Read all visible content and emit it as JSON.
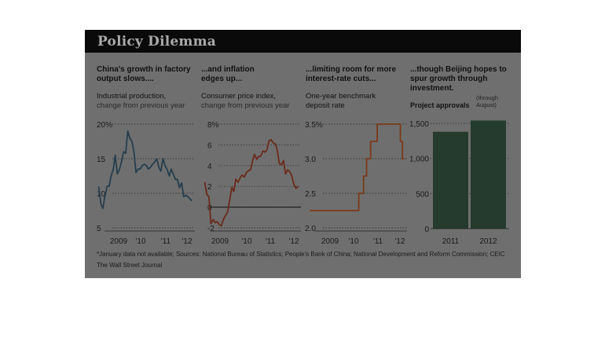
{
  "title": "Policy Dilemma",
  "colors": {
    "panel_bg": "#6f6f6f",
    "title_bar": "#0a0a0a",
    "ip_line": "#263e4e",
    "ip_highlight": "#7cc0de",
    "cpi_line": "#6b2a1c",
    "cpi_highlight": "#d84a35",
    "rate_line": "#7a3a18",
    "rate_highlight": "#e7a21a",
    "bar_fill": "#243b2e",
    "bar_highlight": "#5d9a6a"
  },
  "panels": [
    {
      "headline": "China's growth in factory output slows....",
      "subtitle": "Industrial production,",
      "subtitle2": "change from previous year"
    },
    {
      "headline": "...and inflation edges up...",
      "subtitle": "Consumer price index,",
      "subtitle2": "change from previous year"
    },
    {
      "headline": "...limiting room for more interest-rate cuts...",
      "subtitle": "One-year benchmark",
      "subtitle2": "deposit rate"
    },
    {
      "headline": "...though Beijing hopes to spur growth through investment.",
      "subtitle": "Project approvals",
      "note": "(through August)"
    }
  ],
  "chart_data": [
    {
      "type": "line",
      "title": "Industrial production, change from previous year",
      "y_ticks": [
        "20%",
        "15",
        "10",
        "5"
      ],
      "x_ticks": [
        "2009",
        "'10",
        "'11",
        "'12"
      ],
      "ylim": [
        5,
        20
      ],
      "xlim": [
        2008.75,
        2012.7
      ],
      "series": [
        {
          "x": [
            2008.83,
            2008.92,
            2009.0,
            2009.08,
            2009.17,
            2009.25,
            2009.33,
            2009.42,
            2009.5,
            2009.58,
            2009.67,
            2009.75,
            2009.83,
            2009.92,
            2010.0,
            2010.08,
            2010.17,
            2010.25,
            2010.33,
            2010.42,
            2010.5,
            2010.58,
            2010.67,
            2010.75,
            2010.83,
            2010.92,
            2011.0,
            2011.08,
            2011.17,
            2011.25,
            2011.33,
            2011.42,
            2011.5,
            2011.58,
            2011.67,
            2011.75,
            2011.83,
            2011.92,
            2012.0,
            2012.08,
            2012.17,
            2012.25,
            2012.33,
            2012.42,
            2012.5,
            2012.58
          ],
          "y": [
            11.0,
            8.5,
            7.8,
            9.5,
            11.0,
            11.0,
            12.5,
            13.5,
            15.5,
            12.8,
            13.5,
            14.5,
            16.0,
            15.8,
            19.0,
            18.0,
            17.5,
            16.0,
            13.0,
            13.5,
            13.5,
            14.0,
            14.2,
            14.0,
            13.5,
            13.8,
            14.2,
            14.5,
            15.0,
            13.8,
            13.2,
            15.0,
            14.0,
            13.5,
            12.5,
            13.5,
            12.8,
            12.0,
            12.0,
            10.8,
            11.5,
            9.5,
            9.7,
            9.5,
            9.2,
            8.9
          ]
        }
      ]
    },
    {
      "type": "line",
      "title": "Consumer price index, change from previous year",
      "y_ticks": [
        "8%",
        "6",
        "4",
        "2",
        "0",
        "-2"
      ],
      "x_ticks": [
        "2009",
        "'10",
        "'11",
        "'12"
      ],
      "ylim": [
        -2,
        8
      ],
      "xlim": [
        2008.75,
        2012.7
      ],
      "series": [
        {
          "x": [
            2008.83,
            2008.92,
            2009.0,
            2009.08,
            2009.17,
            2009.25,
            2009.33,
            2009.42,
            2009.5,
            2009.58,
            2009.67,
            2009.75,
            2009.83,
            2009.92,
            2010.0,
            2010.08,
            2010.17,
            2010.25,
            2010.33,
            2010.42,
            2010.5,
            2010.58,
            2010.67,
            2010.75,
            2010.83,
            2010.92,
            2011.0,
            2011.08,
            2011.17,
            2011.25,
            2011.33,
            2011.42,
            2011.5,
            2011.58,
            2011.67,
            2011.75,
            2011.83,
            2011.92,
            2012.0,
            2012.08,
            2012.17,
            2012.25,
            2012.33,
            2012.42,
            2012.5,
            2012.58
          ],
          "y": [
            2.4,
            1.2,
            1.0,
            -1.6,
            -1.2,
            -1.5,
            -1.4,
            -1.7,
            -1.8,
            -1.2,
            -0.8,
            -0.5,
            0.6,
            1.9,
            1.5,
            2.7,
            2.4,
            2.8,
            3.1,
            2.9,
            3.3,
            3.5,
            3.6,
            4.4,
            5.1,
            4.6,
            4.9,
            4.9,
            5.4,
            5.3,
            5.5,
            6.4,
            6.5,
            6.2,
            6.1,
            5.5,
            4.2,
            4.1,
            4.5,
            3.2,
            3.6,
            3.4,
            3.0,
            2.2,
            1.8,
            2.0
          ]
        }
      ]
    },
    {
      "type": "line",
      "title": "One-year benchmark deposit rate",
      "y_ticks": [
        "3.5%",
        "3.0",
        "2.5",
        "2.0"
      ],
      "x_ticks": [
        "2009",
        "'10",
        "'11",
        "'12"
      ],
      "ylim": [
        2.0,
        3.5
      ],
      "xlim": [
        2008.75,
        2012.7
      ],
      "series": [
        {
          "x": [
            2008.85,
            2010.79,
            2010.79,
            2010.98,
            2010.98,
            2011.1,
            2011.1,
            2011.26,
            2011.26,
            2011.52,
            2011.52,
            2012.44,
            2012.44,
            2012.52,
            2012.52,
            2012.6
          ],
          "y": [
            2.25,
            2.25,
            2.5,
            2.5,
            2.75,
            2.75,
            3.0,
            3.0,
            3.25,
            3.25,
            3.5,
            3.5,
            3.25,
            3.25,
            3.0,
            3.0
          ]
        }
      ]
    },
    {
      "type": "bar",
      "title": "Project approvals",
      "categories": [
        "2011",
        "2012"
      ],
      "values": [
        1380,
        1540
      ],
      "y_ticks": [
        "1,500",
        "1,000",
        "500",
        "0"
      ],
      "ylim": [
        0,
        1500
      ]
    }
  ],
  "footnote": "*January data not available; Sources: National Bureau of Statistics; People's Bank of China; National Development and Reform Commission; CEIC",
  "credit": "The Wall Street Journal"
}
